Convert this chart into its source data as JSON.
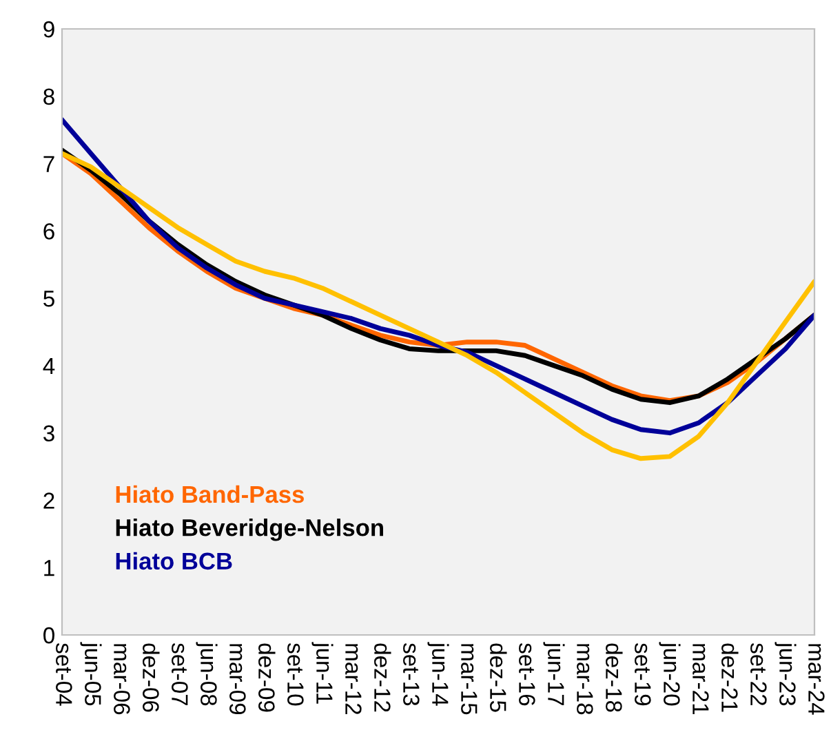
{
  "chart_data": {
    "type": "line",
    "categories": [
      "set-04",
      "jun-05",
      "mar-06",
      "dez-06",
      "set-07",
      "jun-08",
      "mar-09",
      "dez-09",
      "set-10",
      "jun-11",
      "mar-12",
      "dez-12",
      "set-13",
      "jun-14",
      "mar-15",
      "dez-15",
      "set-16",
      "jun-17",
      "mar-18",
      "dez-18",
      "set-19",
      "jun-20",
      "mar-21",
      "dez-21",
      "set-22",
      "jun-23",
      "mar-24"
    ],
    "ylim": [
      0,
      9
    ],
    "yticks": [
      0,
      1,
      2,
      3,
      4,
      5,
      6,
      7,
      8,
      9
    ],
    "grid": false,
    "legend": "bottom left",
    "marker": "none",
    "line_style": "solid",
    "series": [
      {
        "name": "Hiato Band-Pass",
        "color": "#ff6600",
        "values": [
          7.15,
          6.85,
          6.45,
          6.05,
          5.7,
          5.4,
          5.15,
          5.0,
          4.85,
          4.75,
          4.6,
          4.45,
          4.35,
          4.3,
          4.35,
          4.35,
          4.3,
          4.1,
          3.9,
          3.7,
          3.55,
          3.48,
          3.55,
          3.75,
          4.05,
          4.4,
          4.75
        ]
      },
      {
        "name": "Hiato Beveridge-Nelson",
        "color": "#000000",
        "values": [
          7.2,
          6.9,
          6.55,
          6.15,
          5.8,
          5.5,
          5.25,
          5.05,
          4.9,
          4.75,
          4.55,
          4.38,
          4.25,
          4.22,
          4.22,
          4.22,
          4.15,
          4.0,
          3.85,
          3.65,
          3.5,
          3.45,
          3.55,
          3.8,
          4.1,
          4.4,
          4.75
        ]
      },
      {
        "name": "Hiato BCB",
        "color": "#000099",
        "values": [
          7.65,
          7.15,
          6.65,
          6.15,
          5.75,
          5.45,
          5.2,
          5.0,
          4.9,
          4.8,
          4.7,
          4.55,
          4.45,
          4.3,
          4.2,
          4.0,
          3.8,
          3.6,
          3.4,
          3.2,
          3.05,
          3.0,
          3.15,
          3.45,
          3.85,
          4.25,
          4.75
        ]
      },
      {
        "color": "#ffc000",
        "values": [
          7.15,
          6.95,
          6.65,
          6.35,
          6.05,
          5.8,
          5.55,
          5.4,
          5.3,
          5.15,
          4.95,
          4.75,
          4.55,
          4.35,
          4.15,
          3.9,
          3.6,
          3.3,
          3.0,
          2.75,
          2.62,
          2.65,
          2.95,
          3.45,
          4.05,
          4.65,
          5.25
        ]
      }
    ]
  }
}
